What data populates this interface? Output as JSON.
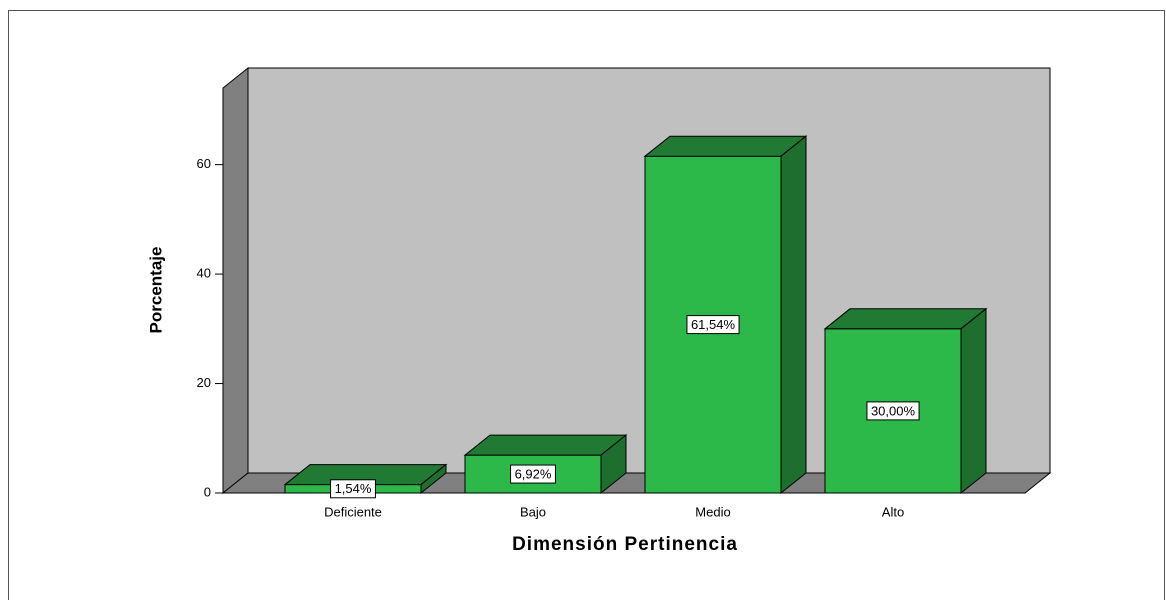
{
  "chart_data": {
    "type": "bar3d",
    "categories": [
      "Deficiente",
      "Bajo",
      "Medio",
      "Alto"
    ],
    "values": [
      1.54,
      6.92,
      61.54,
      30.0
    ],
    "value_labels": [
      "1,54%",
      "6,92%",
      "61,54%",
      "30,00%"
    ],
    "color": "#2db84a",
    "ylim": [
      0,
      74
    ],
    "yticks": [
      0,
      20,
      40,
      60
    ],
    "xlabel": "Dimensión Pertinencia",
    "ylabel": "Porcentaje"
  }
}
